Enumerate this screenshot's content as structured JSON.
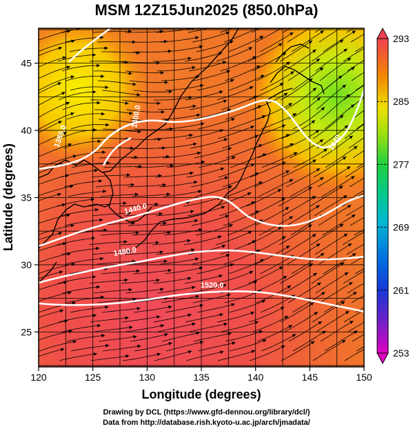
{
  "title": "MSM 12Z15Jun2025 (850.0hPa)",
  "map": {
    "xlabel": "Longitude (degrees)",
    "ylabel": "Latitude (degrees)",
    "lon_range": [
      120,
      150
    ],
    "lat_range": [
      22.4,
      47.6
    ],
    "x_ticks": [
      "120",
      "125",
      "130",
      "135",
      "140",
      "145",
      "150"
    ],
    "y_ticks": [
      "25",
      "30",
      "35",
      "40",
      "45"
    ],
    "x_tick_values": [
      120,
      125,
      130,
      135,
      140,
      145,
      150
    ],
    "y_tick_values": [
      25,
      30,
      35,
      40,
      45
    ],
    "grid": true,
    "field": "temperature",
    "overlay": "streamlines",
    "contours": [
      {
        "label": "1380.0",
        "lon": 122.2,
        "lat": 39.5,
        "angle": -70
      },
      {
        "label": "1400.0",
        "lon": 129.2,
        "lat": 41.0,
        "angle": -80
      },
      {
        "label": "1440.0",
        "lon": 129.0,
        "lat": 34.0,
        "angle": -15
      },
      {
        "label": "1480.0",
        "lon": 128.0,
        "lat": 30.8,
        "angle": -10
      },
      {
        "label": "1520.0",
        "lon": 136.0,
        "lat": 28.3,
        "angle": 0
      },
      {
        "label": "1440",
        "lon": 147.5,
        "lat": 39.0,
        "angle": -60
      }
    ]
  },
  "colorbar": {
    "tick_labels": [
      "293",
      "285",
      "277",
      "269",
      "261",
      "253"
    ],
    "tick_values": [
      293,
      285,
      277,
      269,
      261,
      253
    ],
    "min": 253,
    "max": 293,
    "colors": [
      "#d000c0",
      "#5020c8",
      "#0040d8",
      "#0090e0",
      "#00c8c0",
      "#00d070",
      "#40d820",
      "#b0e010",
      "#f0d000",
      "#f07800",
      "#f03c18",
      "#f05070"
    ]
  },
  "credits": {
    "line1": "Drawing by DCL (https://www.gfd-dennou.org/library/dcl/)",
    "line2": "Data from http://database.rish.kyoto-u.ac.jp/arch/jmadata/"
  }
}
